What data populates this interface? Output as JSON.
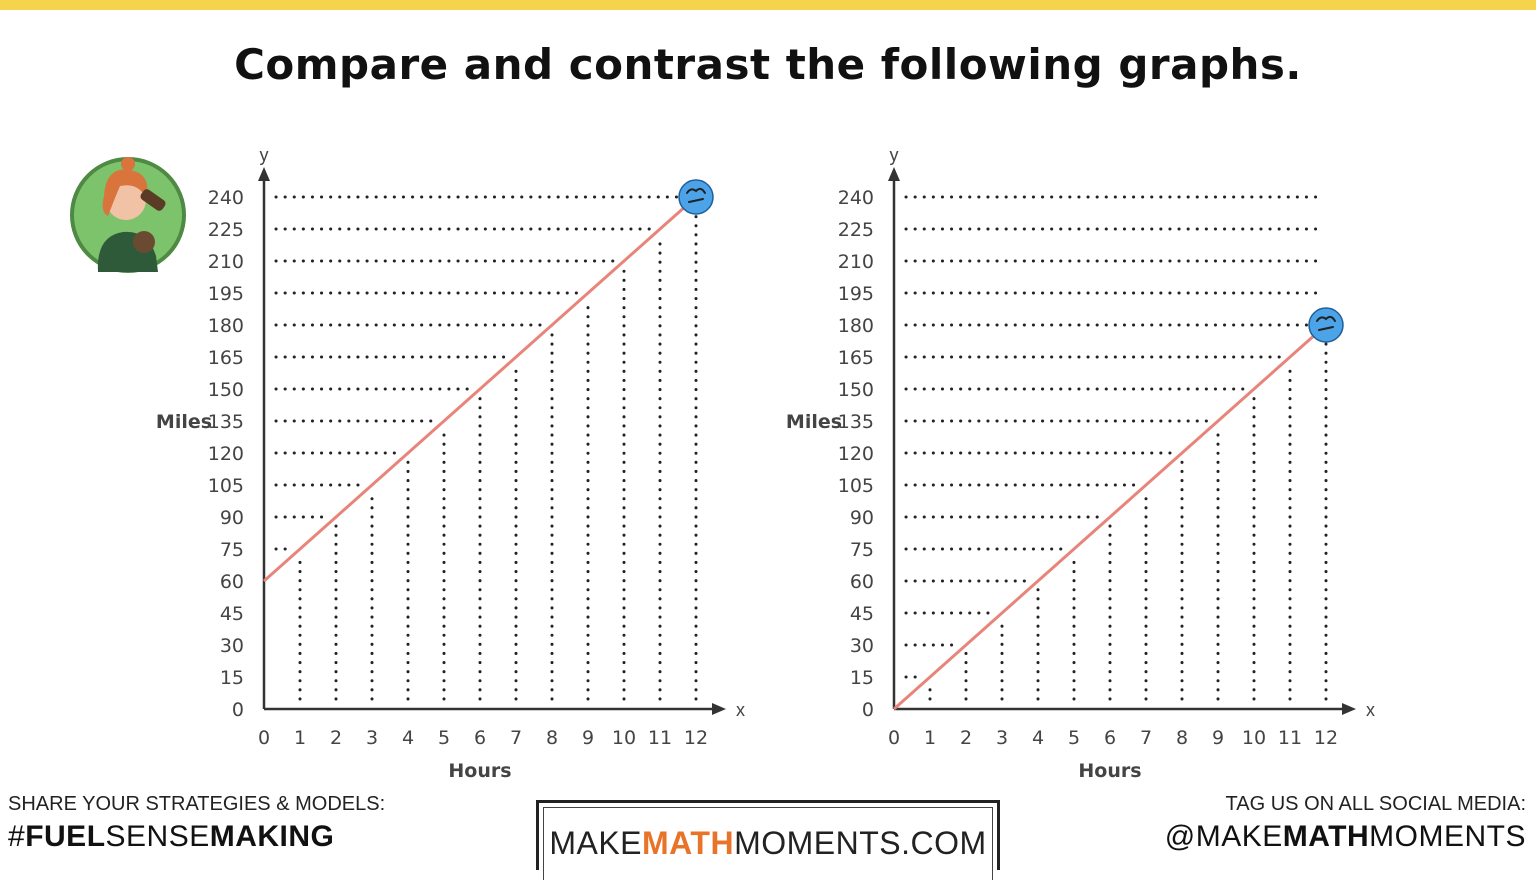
{
  "title": "Compare and contrast the following graphs.",
  "colors": {
    "accent_bar": "#f4d44d",
    "line": "#e8847a",
    "marker": "#4ca3e8",
    "logo_accent": "#e8742a"
  },
  "icons": [
    "person-drinking-avatar-icon",
    "car-marker-icon"
  ],
  "chart_data": [
    {
      "type": "line",
      "xlabel": "Hours",
      "ylabel": "Miles",
      "x_axis_letter": "x",
      "y_axis_letter": "y",
      "xlim": [
        0,
        12
      ],
      "ylim": [
        0,
        240
      ],
      "x_ticks": [
        "0",
        "1",
        "2",
        "3",
        "4",
        "5",
        "6",
        "7",
        "8",
        "9",
        "10",
        "11",
        "12"
      ],
      "y_ticks": [
        "0",
        "15",
        "30",
        "45",
        "60",
        "75",
        "90",
        "105",
        "120",
        "135",
        "150",
        "165",
        "180",
        "195",
        "210",
        "225",
        "240"
      ],
      "grid": "dotted",
      "points": [
        [
          0,
          60
        ],
        [
          12,
          240
        ]
      ],
      "end_marker": "car-marker-icon"
    },
    {
      "type": "line",
      "xlabel": "Hours",
      "ylabel": "Miles",
      "x_axis_letter": "x",
      "y_axis_letter": "y",
      "xlim": [
        0,
        12
      ],
      "ylim": [
        0,
        240
      ],
      "x_ticks": [
        "0",
        "1",
        "2",
        "3",
        "4",
        "5",
        "6",
        "7",
        "8",
        "9",
        "10",
        "11",
        "12"
      ],
      "y_ticks": [
        "0",
        "15",
        "30",
        "45",
        "60",
        "75",
        "90",
        "105",
        "120",
        "135",
        "150",
        "165",
        "180",
        "195",
        "210",
        "225",
        "240"
      ],
      "grid": "dotted",
      "points": [
        [
          0,
          0
        ],
        [
          12,
          180
        ]
      ],
      "end_marker": "car-marker-icon"
    }
  ],
  "footer": {
    "left_caption": "SHARE YOUR STRATEGIES & MODELS:",
    "left_tag_parts": [
      "#",
      "FUEL",
      "SENSE",
      "MAKING"
    ],
    "logo_parts": [
      "MAKE",
      "MATH",
      "MOMENTS",
      ".COM"
    ],
    "right_caption": "TAG US ON ALL SOCIAL MEDIA:",
    "right_tag_parts": [
      "@",
      "MAKE",
      "MATH",
      "MOMENTS"
    ]
  }
}
